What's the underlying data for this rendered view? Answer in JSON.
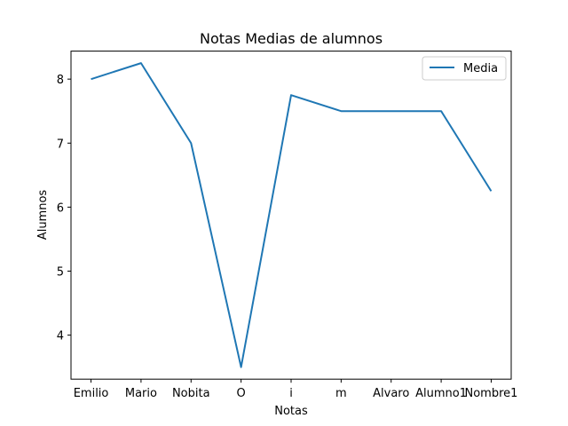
{
  "chart_data": {
    "type": "line",
    "title": "Notas Medias de alumnos",
    "xlabel": "Notas",
    "ylabel": "Alumnos",
    "categories": [
      "Emilio",
      "Mario",
      "Nobita",
      "O",
      "i",
      "m",
      "Alvaro",
      "Alumno1",
      "Nombre1"
    ],
    "series": [
      {
        "name": "Media",
        "values": [
          8.0,
          8.25,
          7.0,
          3.5,
          7.75,
          7.5,
          7.5,
          7.5,
          6.25
        ],
        "color": "#1f77b4"
      }
    ],
    "yticks": [
      4,
      5,
      6,
      7,
      8
    ],
    "ylim": [
      3.3125,
      8.4375
    ],
    "grid": false,
    "legend_position": "upper right"
  }
}
